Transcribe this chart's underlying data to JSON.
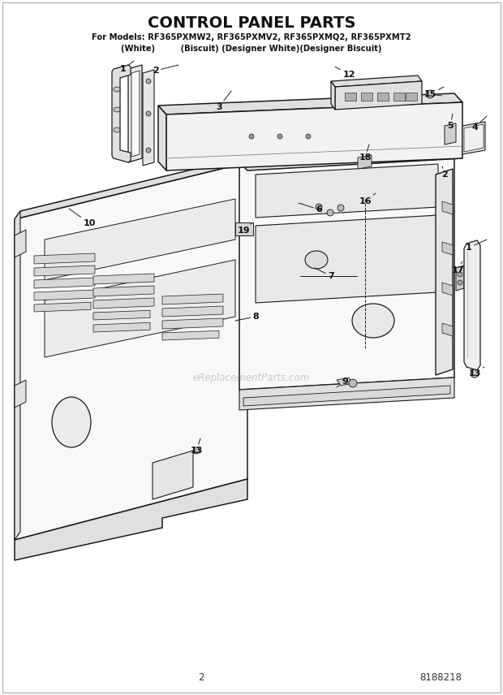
{
  "title": "CONTROL PANEL PARTS",
  "subtitle1": "For Models: RF365PXMW2, RF365PXMV2, RF365PXMQ2, RF365PXMT2",
  "subtitle2": "(White)         (Biscuit) (Designer White)(Designer Biscuit)",
  "page_number": "2",
  "part_number": "8188218",
  "watermark": "eReplacementParts.com",
  "bg_color": "#ffffff",
  "dc": "#1a1a1a"
}
